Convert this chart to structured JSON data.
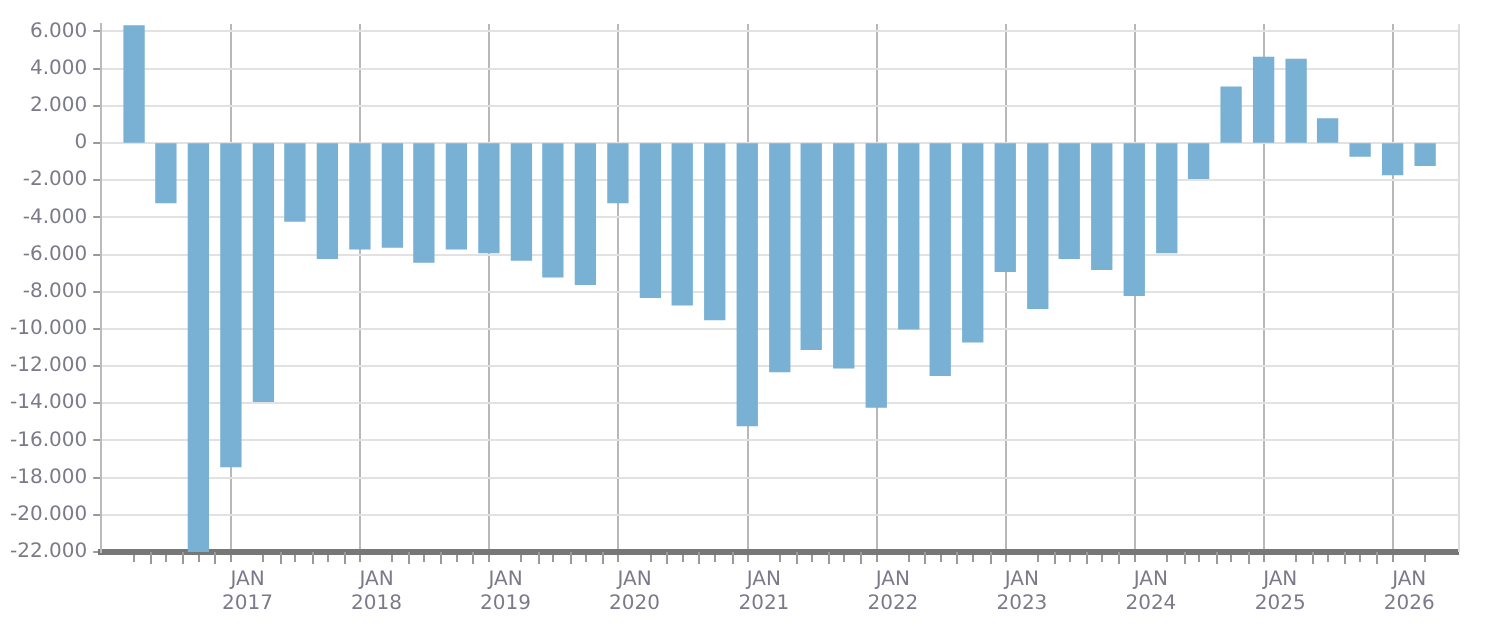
{
  "chart_data": {
    "type": "bar",
    "color": "#78b1d3",
    "x": [
      "2016-02-15",
      "2016-05-15",
      "2016-08-15",
      "2016-11-15",
      "2017-02-15",
      "2017-05-15",
      "2017-08-15",
      "2017-11-15",
      "2018-02-15",
      "2018-05-15",
      "2018-08-15",
      "2018-11-15",
      "2019-02-15",
      "2019-05-15",
      "2019-08-15",
      "2019-11-15",
      "2020-02-15",
      "2020-05-15",
      "2020-08-15",
      "2020-11-15",
      "2021-02-15",
      "2021-05-15",
      "2021-08-15",
      "2021-11-15",
      "2022-02-15",
      "2022-05-15",
      "2022-08-15",
      "2022-11-15",
      "2023-02-15",
      "2023-05-15",
      "2023-08-15",
      "2023-11-15",
      "2024-02-15",
      "2024-05-15",
      "2024-08-15",
      "2024-11-15",
      "2025-02-15",
      "2025-05-15",
      "2025-08-15",
      "2025-11-15",
      "2026-02-15"
    ],
    "values": [
      6300,
      -3200,
      -22000,
      -17400,
      -13900,
      -4200,
      -6200,
      -5700,
      -5600,
      -6400,
      -5700,
      -5900,
      -6300,
      -7200,
      -7600,
      -3200,
      -8300,
      -8700,
      -9500,
      -15200,
      -12300,
      -11100,
      -12100,
      -14200,
      -10000,
      -12500,
      -10700,
      -6900,
      -8900,
      -6200,
      -6800,
      -8200,
      -5900,
      -1900,
      3000,
      4600,
      4500,
      1300,
      -700,
      -1700,
      -1200
    ],
    "xlim": [
      "2016-01-01",
      "2026-04-01"
    ],
    "xticks": [
      {
        "value": "2016-04-01",
        "label": null
      },
      {
        "value": "2016-07-01",
        "label": null
      },
      {
        "value": "2016-10-01",
        "label": null
      },
      {
        "value": "2017-01-01",
        "label": "JAN 2017"
      },
      {
        "value": "2017-04-01",
        "label": null
      },
      {
        "value": "2017-07-01",
        "label": null
      },
      {
        "value": "2017-10-01",
        "label": null
      },
      {
        "value": "2018-01-01",
        "label": "JAN 2018"
      },
      {
        "value": "2018-04-01",
        "label": null
      },
      {
        "value": "2018-07-01",
        "label": null
      },
      {
        "value": "2018-10-01",
        "label": null
      },
      {
        "value": "2019-01-01",
        "label": "JAN 2019"
      },
      {
        "value": "2019-04-01",
        "label": null
      },
      {
        "value": "2019-07-01",
        "label": null
      },
      {
        "value": "2019-10-01",
        "label": null
      },
      {
        "value": "2020-01-01",
        "label": "JAN 2020"
      },
      {
        "value": "2020-04-01",
        "label": null
      },
      {
        "value": "2020-07-01",
        "label": null
      },
      {
        "value": "2020-10-01",
        "label": null
      },
      {
        "value": "2021-01-01",
        "label": "JAN 2021"
      },
      {
        "value": "2021-04-01",
        "label": null
      },
      {
        "value": "2021-07-01",
        "label": null
      },
      {
        "value": "2021-10-01",
        "label": null
      },
      {
        "value": "2022-01-01",
        "label": "JAN 2022"
      },
      {
        "value": "2022-04-01",
        "label": null
      },
      {
        "value": "2022-07-01",
        "label": null
      },
      {
        "value": "2022-10-01",
        "label": null
      },
      {
        "value": "2023-01-01",
        "label": "JAN 2023"
      },
      {
        "value": "2023-04-01",
        "label": null
      },
      {
        "value": "2023-07-01",
        "label": null
      },
      {
        "value": "2023-10-01",
        "label": null
      },
      {
        "value": "2024-01-01",
        "label": "JAN 2024"
      },
      {
        "value": "2024-04-01",
        "label": null
      },
      {
        "value": "2024-07-01",
        "label": null
      },
      {
        "value": "2024-10-01",
        "label": null
      },
      {
        "value": "2025-01-01",
        "label": "JAN 2025"
      },
      {
        "value": "2025-04-01",
        "label": null
      },
      {
        "value": "2025-07-01",
        "label": null
      },
      {
        "value": "2025-10-01",
        "label": null
      },
      {
        "value": "2026-01-01",
        "label": "JAN 2026"
      }
    ],
    "ylim": [
      -22000,
      6400
    ],
    "yticks": [
      {
        "value": 6000,
        "label": "6.000"
      },
      {
        "value": 4000,
        "label": "4.000"
      },
      {
        "value": 2000,
        "label": "2.000"
      },
      0,
      {
        "value": -2000,
        "label": "-2.000"
      },
      {
        "value": -4000,
        "label": "-4.000"
      },
      {
        "value": -6000,
        "label": "-6.000"
      },
      {
        "value": -8000,
        "label": "-8.000"
      },
      {
        "value": -10000,
        "label": "-10.000"
      },
      {
        "value": -12000,
        "label": "-12.000"
      },
      {
        "value": -14000,
        "label": "-14.000"
      },
      {
        "value": -16000,
        "label": "-16.000"
      },
      {
        "value": -18000,
        "label": "-18.000"
      },
      {
        "value": -20000,
        "label": "-20.000"
      },
      {
        "value": -22000,
        "label": "-22.000"
      }
    ],
    "grid": true
  }
}
